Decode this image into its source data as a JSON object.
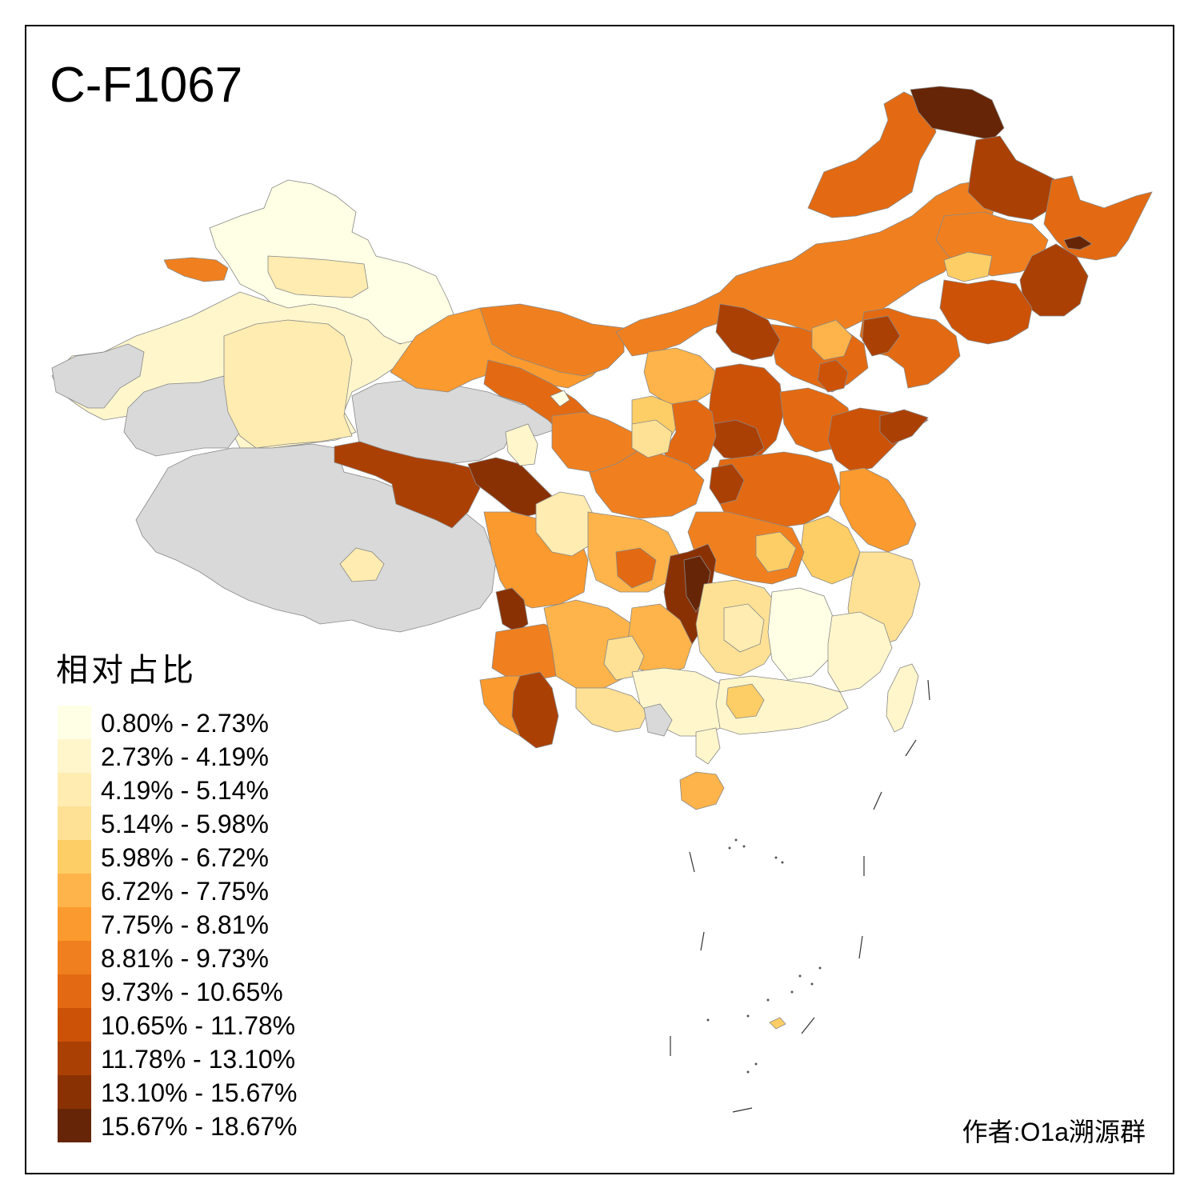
{
  "title": "C-F1067",
  "legend": {
    "title": "相对占比",
    "items": [
      {
        "label": "0.80% - 2.73%",
        "color": "#ffffe5"
      },
      {
        "label": "2.73% - 4.19%",
        "color": "#fff6cc"
      },
      {
        "label": "4.19% - 5.14%",
        "color": "#ffecb0"
      },
      {
        "label": "5.14% - 5.98%",
        "color": "#fee195"
      },
      {
        "label": "5.98% - 6.72%",
        "color": "#fece66"
      },
      {
        "label": "6.72% - 7.75%",
        "color": "#feb44a"
      },
      {
        "label": "7.75% - 8.81%",
        "color": "#fb9a2e"
      },
      {
        "label": "8.81% - 9.73%",
        "color": "#f0801f"
      },
      {
        "label": "9.73% - 10.65%",
        "color": "#e36a12"
      },
      {
        "label": "10.65% - 11.78%",
        "color": "#cc5208"
      },
      {
        "label": "11.78% - 13.10%",
        "color": "#ab4004"
      },
      {
        "label": "13.10% - 15.67%",
        "color": "#8a3104"
      },
      {
        "label": "15.67% - 18.67%",
        "color": "#662506"
      }
    ]
  },
  "no_data_color": "#d9d9d9",
  "author": "作者:O1a溯源群"
}
